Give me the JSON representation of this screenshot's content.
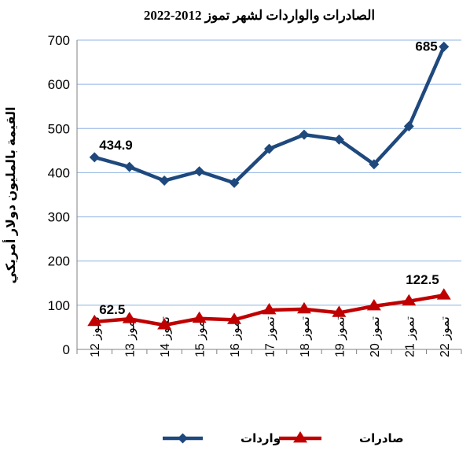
{
  "chart_data": {
    "type": "line",
    "title": "الصادرات والواردات لشهر تموز 2012-2022",
    "ylabel": "القيمة بالمليون دولار أمريكي",
    "xlabel": "",
    "ylim": [
      0,
      700
    ],
    "yticks": [
      "0",
      "100",
      "200",
      "300",
      "400",
      "500",
      "600",
      "700"
    ],
    "categories": [
      "تموز 12",
      "تموز 13",
      "تموز 14",
      "تموز 15",
      "تموز 16",
      "تموز 17",
      "تموز 18",
      "تموز 19",
      "تموز 20",
      "تموز 21",
      "تموز 22"
    ],
    "grid": true,
    "legend_position": "bottom",
    "series": [
      {
        "name": "واردات",
        "color": "#1f497d",
        "marker": "diamond",
        "values": [
          434.9,
          413,
          382,
          403,
          377,
          454,
          486,
          475,
          419,
          505,
          685
        ],
        "labels": [
          {
            "index": 0,
            "text": "434.9"
          },
          {
            "index": 10,
            "text": "685"
          }
        ]
      },
      {
        "name": "صادرات",
        "color": "#c00000",
        "marker": "triangle",
        "values": [
          62.5,
          69,
          55,
          70,
          67,
          89,
          91,
          83,
          98,
          109,
          122.5
        ],
        "labels": [
          {
            "index": 0,
            "text": "62.5"
          },
          {
            "index": 10,
            "text": "122.5"
          }
        ]
      }
    ]
  }
}
